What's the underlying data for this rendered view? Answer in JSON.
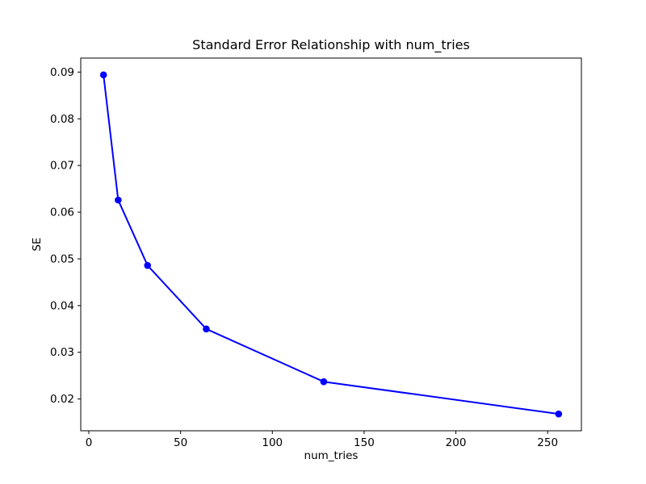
{
  "figure": {
    "background": "#ffffff"
  },
  "chart_data": {
    "type": "line",
    "title": "Standard Error Relationship with num_tries",
    "xlabel": "num_tries",
    "ylabel": "SE",
    "x": [
      8,
      16,
      32,
      64,
      128,
      256
    ],
    "y": [
      0.0894,
      0.0626,
      0.0486,
      0.035,
      0.0237,
      0.0168
    ],
    "xlim": [
      -4.4,
      268.4
    ],
    "ylim": [
      0.0132,
      0.093
    ],
    "xticks": [
      0,
      50,
      100,
      150,
      200,
      250
    ],
    "xtick_labels": [
      "0",
      "50",
      "100",
      "150",
      "200",
      "250"
    ],
    "yticks": [
      0.02,
      0.03,
      0.04,
      0.05,
      0.06,
      0.07,
      0.08,
      0.09
    ],
    "ytick_labels": [
      "0.02",
      "0.03",
      "0.04",
      "0.05",
      "0.06",
      "0.07",
      "0.08",
      "0.09"
    ],
    "grid": false,
    "legend": "none",
    "line_color": "#0000ff",
    "marker": "o",
    "line_width": 2,
    "marker_radius": 4.3,
    "axis_color": "#000000",
    "text_color": "#000000",
    "tick_font_size": 13.5
  }
}
